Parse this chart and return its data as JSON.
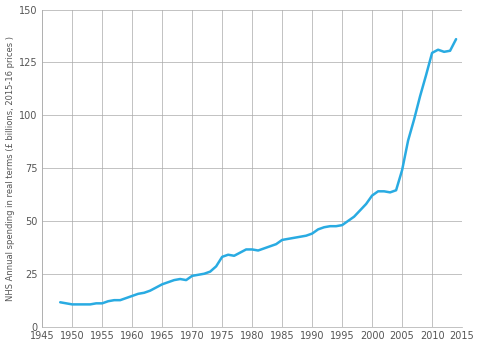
{
  "title": "",
  "ylabel": "NHS Annual spending in real terms (£ billions, 2015-16 prices )",
  "xlabel": "",
  "xlim": [
    1945,
    2015
  ],
  "ylim": [
    0,
    150
  ],
  "xticks": [
    1945,
    1950,
    1955,
    1960,
    1965,
    1970,
    1975,
    1980,
    1985,
    1990,
    1995,
    2000,
    2005,
    2010,
    2015
  ],
  "yticks": [
    0,
    25,
    50,
    75,
    100,
    125,
    150
  ],
  "line_color": "#29ABE2",
  "line_width": 1.8,
  "background_color": "#ffffff",
  "grid_color": "#aaaaaa",
  "tick_color": "#555555",
  "tick_fontsize": 7,
  "ylabel_fontsize": 6,
  "years": [
    1948,
    1949,
    1950,
    1951,
    1952,
    1953,
    1954,
    1955,
    1956,
    1957,
    1958,
    1959,
    1960,
    1961,
    1962,
    1963,
    1964,
    1965,
    1966,
    1967,
    1968,
    1969,
    1970,
    1971,
    1972,
    1973,
    1974,
    1975,
    1976,
    1977,
    1978,
    1979,
    1980,
    1981,
    1982,
    1983,
    1984,
    1985,
    1986,
    1987,
    1988,
    1989,
    1990,
    1991,
    1992,
    1993,
    1994,
    1995,
    1996,
    1997,
    1998,
    1999,
    2000,
    2001,
    2002,
    2003,
    2004,
    2005,
    2006,
    2007,
    2008,
    2009,
    2010,
    2011,
    2012,
    2013,
    2014
  ],
  "values": [
    11.5,
    11.0,
    10.5,
    10.5,
    10.5,
    10.5,
    11.0,
    11.0,
    12.0,
    12.5,
    12.5,
    13.5,
    14.5,
    15.5,
    16.0,
    17.0,
    18.5,
    20.0,
    21.0,
    22.0,
    22.5,
    22.0,
    24.0,
    24.5,
    25.0,
    26.0,
    28.5,
    33.0,
    34.0,
    33.5,
    35.0,
    36.5,
    36.5,
    36.0,
    37.0,
    38.0,
    39.0,
    41.0,
    41.5,
    42.0,
    42.5,
    43.0,
    44.0,
    46.0,
    47.0,
    47.5,
    47.5,
    48.0,
    50.0,
    52.0,
    55.0,
    58.0,
    62.0,
    64.0,
    64.0,
    63.5,
    64.5,
    74.0,
    88.0,
    98.0,
    109.0,
    119.0,
    129.5,
    131.0,
    130.0,
    130.5,
    136.0
  ]
}
